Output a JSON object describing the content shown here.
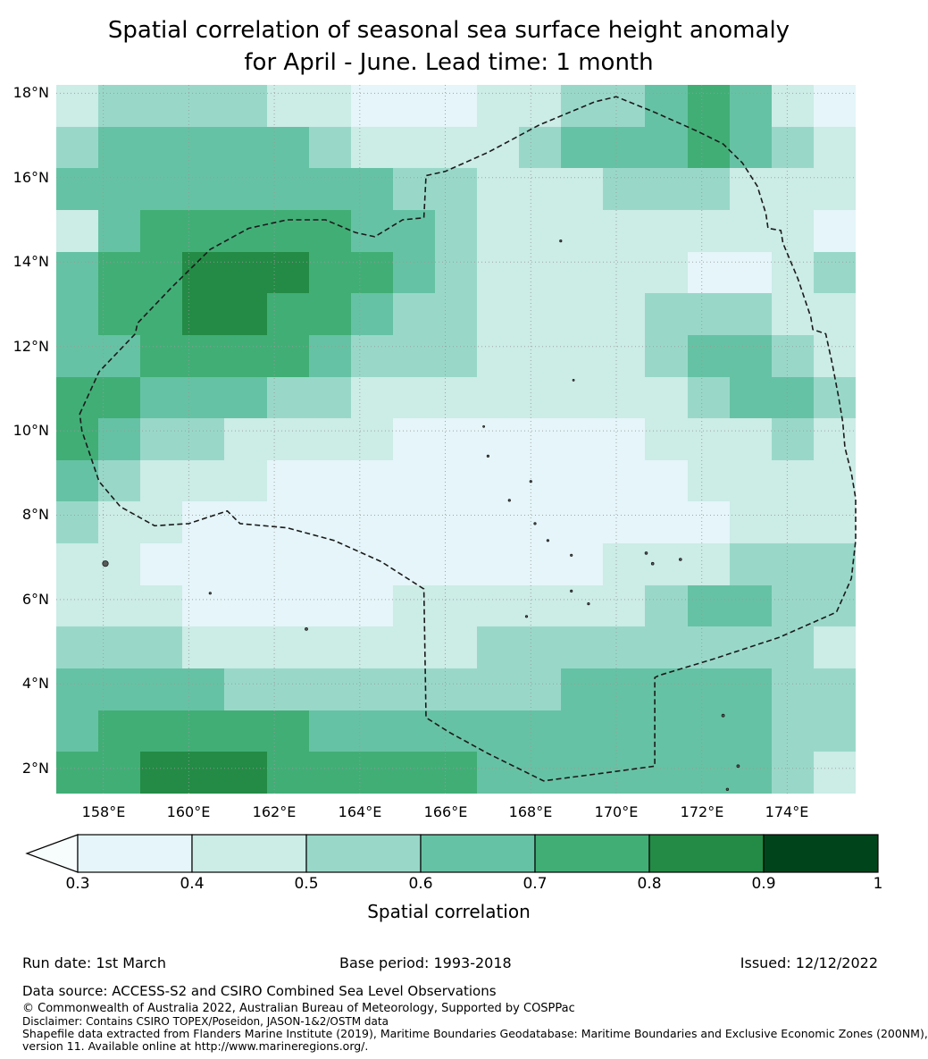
{
  "title": {
    "line1": "Spatial correlation of seasonal sea surface height anomaly",
    "line2": "for April - June. Lead time: 1 month"
  },
  "chart_data": {
    "type": "heatmap",
    "title": "Spatial correlation of seasonal sea surface height anomaly for April - June. Lead time: 1 month",
    "x_axis": {
      "tick_labels": [
        "158°E",
        "160°E",
        "162°E",
        "164°E",
        "166°E",
        "168°E",
        "170°E",
        "172°E",
        "174°E"
      ],
      "tick_values": [
        158,
        160,
        162,
        164,
        166,
        168,
        170,
        172,
        174
      ],
      "range": [
        156.9,
        175.6
      ]
    },
    "y_axis": {
      "tick_labels": [
        "2°N",
        "4°N",
        "6°N",
        "8°N",
        "10°N",
        "12°N",
        "14°N",
        "16°N",
        "18°N"
      ],
      "tick_values": [
        2,
        4,
        6,
        8,
        10,
        12,
        14,
        16,
        18
      ],
      "range": [
        1.4,
        18.2
      ]
    },
    "grid": {
      "lon_range": [
        156.9,
        175.6
      ],
      "lat_range": [
        1.4,
        18.2
      ],
      "ncols": 19,
      "nrows": 17,
      "values": [
        [
          0.45,
          0.55,
          0.55,
          0.55,
          0.55,
          0.45,
          0.45,
          0.35,
          0.35,
          0.35,
          0.45,
          0.45,
          0.55,
          0.55,
          0.65,
          0.75,
          0.65,
          0.45,
          0.35
        ],
        [
          0.55,
          0.65,
          0.65,
          0.65,
          0.65,
          0.65,
          0.55,
          0.45,
          0.45,
          0.45,
          0.45,
          0.55,
          0.65,
          0.65,
          0.65,
          0.75,
          0.65,
          0.55,
          0.45
        ],
        [
          0.65,
          0.65,
          0.65,
          0.65,
          0.65,
          0.65,
          0.65,
          0.65,
          0.55,
          0.55,
          0.45,
          0.45,
          0.45,
          0.55,
          0.55,
          0.55,
          0.45,
          0.45,
          0.45
        ],
        [
          0.45,
          0.65,
          0.75,
          0.75,
          0.75,
          0.75,
          0.75,
          0.65,
          0.65,
          0.55,
          0.45,
          0.45,
          0.45,
          0.45,
          0.45,
          0.45,
          0.45,
          0.45,
          0.35
        ],
        [
          0.65,
          0.75,
          0.75,
          0.85,
          0.85,
          0.85,
          0.75,
          0.75,
          0.65,
          0.55,
          0.45,
          0.45,
          0.45,
          0.45,
          0.45,
          0.35,
          0.35,
          0.45,
          0.55
        ],
        [
          0.65,
          0.75,
          0.75,
          0.85,
          0.85,
          0.75,
          0.75,
          0.65,
          0.55,
          0.55,
          0.45,
          0.45,
          0.45,
          0.45,
          0.55,
          0.55,
          0.55,
          0.45,
          0.45
        ],
        [
          0.65,
          0.65,
          0.75,
          0.75,
          0.75,
          0.75,
          0.65,
          0.55,
          0.55,
          0.55,
          0.45,
          0.45,
          0.45,
          0.45,
          0.55,
          0.65,
          0.65,
          0.55,
          0.45
        ],
        [
          0.75,
          0.75,
          0.65,
          0.65,
          0.65,
          0.55,
          0.55,
          0.45,
          0.45,
          0.45,
          0.45,
          0.45,
          0.45,
          0.45,
          0.45,
          0.55,
          0.65,
          0.65,
          0.55
        ],
        [
          0.75,
          0.65,
          0.55,
          0.55,
          0.45,
          0.45,
          0.45,
          0.45,
          0.35,
          0.35,
          0.35,
          0.35,
          0.35,
          0.35,
          0.45,
          0.45,
          0.45,
          0.55,
          0.45
        ],
        [
          0.65,
          0.55,
          0.45,
          0.45,
          0.45,
          0.35,
          0.35,
          0.35,
          0.35,
          0.35,
          0.35,
          0.35,
          0.35,
          0.35,
          0.35,
          0.45,
          0.45,
          0.45,
          0.45
        ],
        [
          0.55,
          0.45,
          0.45,
          0.35,
          0.35,
          0.35,
          0.35,
          0.35,
          0.35,
          0.35,
          0.35,
          0.35,
          0.35,
          0.35,
          0.35,
          0.35,
          0.45,
          0.45,
          0.45
        ],
        [
          0.45,
          0.45,
          0.35,
          0.35,
          0.35,
          0.35,
          0.35,
          0.35,
          0.35,
          0.35,
          0.35,
          0.35,
          0.35,
          0.45,
          0.45,
          0.45,
          0.55,
          0.55,
          0.55
        ],
        [
          0.45,
          0.45,
          0.45,
          0.35,
          0.35,
          0.35,
          0.35,
          0.35,
          0.45,
          0.45,
          0.45,
          0.45,
          0.45,
          0.45,
          0.55,
          0.65,
          0.65,
          0.55,
          0.55
        ],
        [
          0.55,
          0.55,
          0.55,
          0.45,
          0.45,
          0.45,
          0.45,
          0.45,
          0.45,
          0.45,
          0.55,
          0.55,
          0.55,
          0.55,
          0.55,
          0.55,
          0.55,
          0.55,
          0.45
        ],
        [
          0.65,
          0.65,
          0.65,
          0.65,
          0.55,
          0.55,
          0.55,
          0.55,
          0.55,
          0.55,
          0.55,
          0.55,
          0.65,
          0.65,
          0.65,
          0.65,
          0.65,
          0.55,
          0.55
        ],
        [
          0.65,
          0.75,
          0.75,
          0.75,
          0.75,
          0.75,
          0.65,
          0.65,
          0.65,
          0.65,
          0.65,
          0.65,
          0.65,
          0.65,
          0.65,
          0.65,
          0.65,
          0.55,
          0.55
        ],
        [
          0.75,
          0.75,
          0.85,
          0.85,
          0.85,
          0.75,
          0.75,
          0.75,
          0.75,
          0.75,
          0.65,
          0.65,
          0.65,
          0.65,
          0.65,
          0.65,
          0.65,
          0.55,
          0.45
        ]
      ]
    },
    "colorbar": {
      "label": "Spatial correlation",
      "tick_labels": [
        "0.3",
        "0.4",
        "0.5",
        "0.6",
        "0.7",
        "0.8",
        "0.9",
        "1"
      ],
      "levels": [
        0.3,
        0.4,
        0.5,
        0.6,
        0.7,
        0.8,
        0.9,
        1.0
      ],
      "colors": [
        "#e5f5f9",
        "#ccece6",
        "#99d8c9",
        "#66c2a4",
        "#41ae76",
        "#238b45",
        "#00441b"
      ],
      "under_color": "#f7fcfd",
      "extend": "min"
    },
    "boundary": {
      "name": "eez-dashed-boundary",
      "points": [
        [
          157.45,
          10.4
        ],
        [
          157.9,
          11.4
        ],
        [
          158.75,
          12.3
        ],
        [
          158.8,
          12.55
        ],
        [
          159.6,
          13.4
        ],
        [
          160.5,
          14.3
        ],
        [
          161.4,
          14.8
        ],
        [
          162.3,
          15.0
        ],
        [
          163.2,
          15.0
        ],
        [
          163.9,
          14.7
        ],
        [
          164.35,
          14.6
        ],
        [
          165.0,
          15.0
        ],
        [
          165.5,
          15.05
        ],
        [
          165.55,
          16.05
        ],
        [
          166.0,
          16.15
        ],
        [
          167.0,
          16.6
        ],
        [
          168.2,
          17.25
        ],
        [
          169.5,
          17.8
        ],
        [
          170.0,
          17.92
        ],
        [
          170.9,
          17.55
        ],
        [
          171.9,
          17.1
        ],
        [
          172.5,
          16.8
        ],
        [
          172.95,
          16.35
        ],
        [
          173.3,
          15.8
        ],
        [
          173.5,
          15.15
        ],
        [
          173.55,
          14.8
        ],
        [
          173.85,
          14.75
        ],
        [
          173.9,
          14.45
        ],
        [
          174.25,
          13.6
        ],
        [
          174.55,
          12.7
        ],
        [
          174.6,
          12.4
        ],
        [
          174.9,
          12.3
        ],
        [
          175.05,
          11.6
        ],
        [
          175.2,
          10.8
        ],
        [
          175.3,
          10.2
        ],
        [
          175.35,
          9.6
        ],
        [
          175.5,
          9.0
        ],
        [
          175.6,
          8.4
        ],
        [
          175.6,
          7.4
        ],
        [
          175.5,
          6.5
        ],
        [
          175.15,
          5.7
        ],
        [
          173.8,
          5.1
        ],
        [
          172.3,
          4.6
        ],
        [
          171.0,
          4.2
        ],
        [
          170.9,
          4.15
        ],
        [
          170.9,
          2.05
        ],
        [
          169.8,
          1.9
        ],
        [
          168.3,
          1.7
        ],
        [
          167.0,
          2.35
        ],
        [
          166.1,
          2.85
        ],
        [
          165.55,
          3.2
        ],
        [
          165.5,
          6.25
        ],
        [
          164.5,
          6.9
        ],
        [
          163.4,
          7.4
        ],
        [
          162.3,
          7.7
        ],
        [
          161.2,
          7.8
        ],
        [
          160.9,
          8.1
        ],
        [
          160.0,
          7.8
        ],
        [
          159.2,
          7.75
        ],
        [
          158.4,
          8.2
        ],
        [
          157.9,
          8.8
        ],
        [
          157.5,
          10.0
        ]
      ]
    },
    "islands": [
      [
        158.05,
        6.85,
        3.2
      ],
      [
        160.5,
        6.15,
        1.2
      ],
      [
        162.75,
        5.3,
        1.5
      ],
      [
        168.7,
        14.5,
        1.2
      ],
      [
        167.0,
        9.4,
        1.2
      ],
      [
        168.0,
        8.8,
        1.2
      ],
      [
        167.5,
        8.35,
        1.2
      ],
      [
        168.1,
        7.8,
        1.2
      ],
      [
        168.4,
        7.4,
        1.2
      ],
      [
        168.95,
        7.05,
        1.2
      ],
      [
        170.7,
        7.1,
        1.4
      ],
      [
        170.85,
        6.85,
        1.4
      ],
      [
        171.5,
        6.95,
        1.4
      ],
      [
        168.95,
        6.2,
        1.2
      ],
      [
        167.9,
        5.6,
        1.2
      ],
      [
        169.35,
        5.9,
        1.2
      ],
      [
        172.5,
        3.25,
        1.5
      ],
      [
        172.85,
        2.05,
        1.5
      ],
      [
        172.6,
        1.5,
        1.3
      ],
      [
        169.0,
        11.2,
        1.0
      ],
      [
        166.9,
        10.1,
        1.0
      ]
    ]
  },
  "footer": {
    "run_date": "Run date: 1st March",
    "base_period": "Base period: 1993-2018",
    "issued": "Issued: 12/12/2022",
    "data_source": "Data source: ACCESS-S2 and CSIRO Combined Sea Level Observations",
    "copyright": "© Commonwealth of Australia 2022, Australian Bureau of Meteorology, Supported by COSPPac",
    "disclaimer": "Disclaimer: Contains CSIRO TOPEX/Poseidon, JASON-1&2/OSTM data",
    "shapefile_line1": "Shapefile data extracted from Flanders Marine Institute (2019), Maritime Boundaries Geodatabase: Maritime Boundaries and Exclusive Economic Zones (200NM),",
    "shapefile_line2": "version 11. Available online at http://www.marineregions.org/."
  }
}
